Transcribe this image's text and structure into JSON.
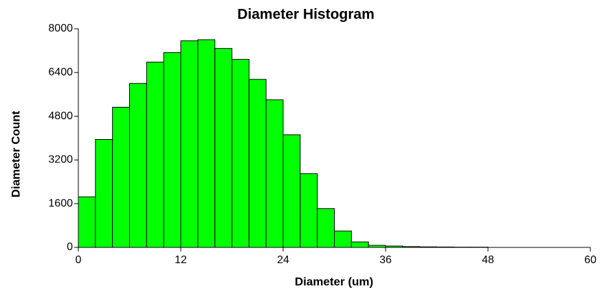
{
  "chart_data": {
    "type": "histogram",
    "title": "Diameter Histogram",
    "x_label": "Diameter  (um)",
    "y_label": "Diameter Count",
    "bins": [
      0,
      2,
      4,
      6,
      8,
      10,
      12,
      14,
      16,
      18,
      20,
      22,
      24,
      26,
      28,
      30,
      32,
      34,
      36,
      38,
      40,
      42,
      44,
      46,
      48
    ],
    "counts": [
      1850,
      3950,
      5130,
      6000,
      6780,
      7130,
      7560,
      7600,
      7280,
      6880,
      6150,
      5400,
      4120,
      2700,
      1420,
      600,
      200,
      75,
      50,
      30,
      20,
      15,
      10,
      10
    ],
    "color": "#00ff00",
    "xlim": [
      0,
      60
    ],
    "xticks": [
      0,
      12,
      24,
      36,
      48,
      60
    ],
    "ylim": [
      0,
      8000
    ],
    "yticks": [
      0,
      1600,
      3200,
      4800,
      6400,
      8000
    ]
  }
}
